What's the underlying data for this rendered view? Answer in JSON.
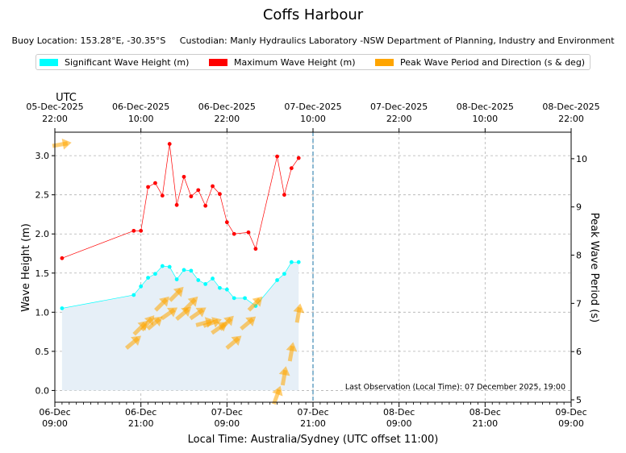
{
  "title": "Coffs Harbour",
  "subtitle": "Buoy Location: 153.28°E, -30.35°S     Custodian: Manly Hydraulics Laboratory -NSW Department of Planning, Industry and Environment",
  "colors": {
    "hs": "#00ffff",
    "hmax": "#ff0000",
    "period": "#ffa500",
    "fill": "#e6eff7",
    "now_line": "#5a9bbf"
  },
  "chart_data": {
    "type": "line",
    "title": "Coffs Harbour",
    "xlabel": "Local Time: Australia/Sydney (UTC offset 11:00)",
    "ylabel": "Wave Height (m)",
    "y2label": "Peak Wave Period (s)",
    "top_axis_label": "UTC",
    "xlim_hours": [
      0,
      72
    ],
    "ylim": [
      -0.15,
      3.3
    ],
    "y2lim": [
      4.95,
      10.55
    ],
    "grid": true,
    "yticks": [
      "0.0",
      "0.5",
      "1.0",
      "1.5",
      "2.0",
      "2.5",
      "3.0"
    ],
    "y2ticks": [
      "5",
      "6",
      "7",
      "8",
      "9",
      "10"
    ],
    "bottom_ticks": [
      {
        "h": 0,
        "l1": "06-Dec",
        "l2": "09:00"
      },
      {
        "h": 12,
        "l1": "06-Dec",
        "l2": "21:00"
      },
      {
        "h": 24,
        "l1": "07-Dec",
        "l2": "09:00"
      },
      {
        "h": 36,
        "l1": "07-Dec",
        "l2": "21:00"
      },
      {
        "h": 48,
        "l1": "08-Dec",
        "l2": "09:00"
      },
      {
        "h": 60,
        "l1": "08-Dec",
        "l2": "21:00"
      },
      {
        "h": 72,
        "l1": "09-Dec",
        "l2": "09:00"
      }
    ],
    "top_ticks": [
      {
        "h": 0,
        "l1": "05-Dec-2025",
        "l2": "22:00"
      },
      {
        "h": 12,
        "l1": "06-Dec-2025",
        "l2": "10:00"
      },
      {
        "h": 24,
        "l1": "06-Dec-2025",
        "l2": "22:00"
      },
      {
        "h": 36,
        "l1": "07-Dec-2025",
        "l2": "10:00"
      },
      {
        "h": 48,
        "l1": "07-Dec-2025",
        "l2": "22:00"
      },
      {
        "h": 60,
        "l1": "08-Dec-2025",
        "l2": "10:00"
      },
      {
        "h": 72,
        "l1": "08-Dec-2025",
        "l2": "22:00"
      }
    ],
    "now_hour": 36,
    "last_observation": "Last Observation (Local Time): 07 December 2025, 19:00",
    "series": [
      {
        "name": "Significant Wave Height (m)",
        "x": [
          1,
          11,
          12,
          13,
          14,
          15,
          16,
          17,
          18,
          19,
          20,
          21,
          22,
          23,
          24,
          25,
          26.5,
          28,
          31,
          32,
          33,
          34
        ],
        "values": [
          1.05,
          1.22,
          1.33,
          1.44,
          1.49,
          1.59,
          1.58,
          1.42,
          1.54,
          1.53,
          1.41,
          1.36,
          1.43,
          1.31,
          1.29,
          1.18,
          1.18,
          1.08,
          1.41,
          1.49,
          1.64,
          1.64
        ]
      },
      {
        "name": "Maximum Wave Height (m)",
        "x": [
          1,
          11,
          12,
          13,
          14,
          15,
          16,
          17,
          18,
          19,
          20,
          21,
          22,
          23,
          24,
          25,
          27,
          28,
          31,
          32,
          33,
          34
        ],
        "values": [
          1.69,
          2.04,
          2.04,
          2.6,
          2.65,
          2.49,
          3.15,
          2.37,
          2.73,
          2.48,
          2.56,
          2.36,
          2.61,
          2.51,
          2.15,
          2.0,
          2.02,
          1.81,
          2.99,
          2.5,
          2.84,
          2.97
        ]
      },
      {
        "name": "Peak Wave Period and Direction (s & deg)",
        "x": [
          1,
          11,
          12,
          13,
          14,
          15,
          16,
          17,
          18,
          19,
          20,
          21,
          22,
          23,
          24,
          25,
          27,
          28,
          31,
          32,
          33,
          34
        ],
        "period_s": [
          10.3,
          6.2,
          6.5,
          6.6,
          6.6,
          7.0,
          6.8,
          7.2,
          6.8,
          7.0,
          6.8,
          6.6,
          6.6,
          6.5,
          6.6,
          6.2,
          6.6,
          7.0,
          5.1,
          5.5,
          6.0,
          6.8
        ],
        "direction_deg": [
          260,
          230,
          225,
          220,
          230,
          225,
          235,
          225,
          230,
          225,
          235,
          255,
          250,
          235,
          225,
          230,
          230,
          225,
          200,
          190,
          190,
          190
        ]
      }
    ]
  }
}
